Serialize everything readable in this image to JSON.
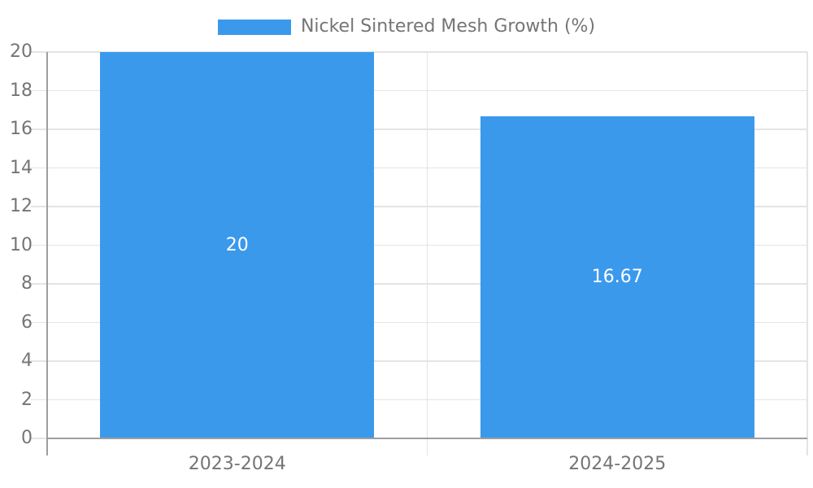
{
  "legend": {
    "label": "Nickel Sintered Mesh Growth (%)",
    "swatch_color": "#3b99ec"
  },
  "colors": {
    "bar": "#3b99ec",
    "text": "#757575",
    "grid": "#e4e4e4",
    "axis": "#9e9e9e",
    "value_text": "#ffffff",
    "background": "#ffffff"
  },
  "chart_data": {
    "type": "bar",
    "title": "",
    "categories": [
      "2023-2024",
      "2024-2025"
    ],
    "series": [
      {
        "name": "Nickel Sintered Mesh Growth (%)",
        "color": "#3b99ec",
        "values": [
          20,
          16.67
        ],
        "value_labels": [
          "20",
          "16.67"
        ]
      }
    ],
    "xlabel": "",
    "ylabel": "",
    "ylim": [
      0,
      20
    ],
    "yticks": [
      0,
      2,
      4,
      6,
      8,
      10,
      12,
      14,
      16,
      18,
      20
    ],
    "grid": true,
    "legend_position": "top-center",
    "value_label_position": "inside-center"
  }
}
